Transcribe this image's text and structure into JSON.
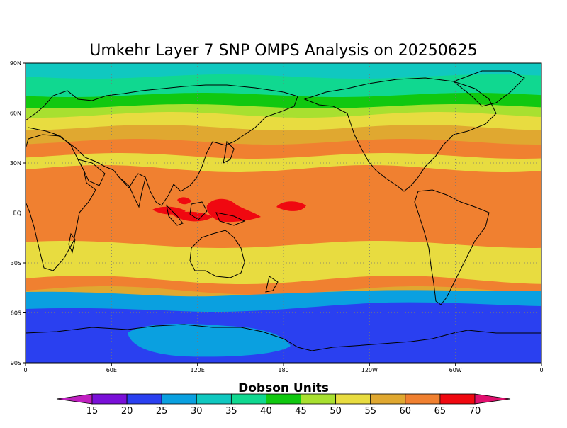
{
  "title": "Umkehr Layer 7 SNP OMPS Analysis on 20250625",
  "y_ticks": [
    "90N",
    "60N",
    "30N",
    "EQ",
    "30S",
    "60S",
    "90S"
  ],
  "x_ticks": [
    "0",
    "60E",
    "120E",
    "180",
    "120W",
    "60W",
    "0"
  ],
  "colorbar": {
    "label": "Dobson Units",
    "levels": [
      "15",
      "20",
      "25",
      "30",
      "35",
      "40",
      "45",
      "50",
      "55",
      "60",
      "65",
      "70"
    ],
    "colors": [
      "#c020c0",
      "#7a10d8",
      "#2a40f0",
      "#0aa0e0",
      "#10c8c0",
      "#10d890",
      "#10c810",
      "#a8e030",
      "#e8dc40",
      "#e0a830",
      "#f08030",
      "#f00810",
      "#e0106e"
    ]
  },
  "field_bands": [
    {
      "name": "60-65",
      "color": "#f08030"
    },
    {
      "name": "55-60",
      "color": "#e0a830"
    },
    {
      "name": "50-55",
      "color": "#e8dc40"
    },
    {
      "name": "45-50",
      "color": "#a8e030"
    },
    {
      "name": "40-45",
      "color": "#10c810"
    },
    {
      "name": "35-40",
      "color": "#10d890"
    },
    {
      "name": "30-35",
      "color": "#10c8c0"
    },
    {
      "name": "25-30",
      "color": "#0aa0e0"
    },
    {
      "name": "20-25",
      "color": "#2a40f0"
    },
    {
      "name": "65-70",
      "color": "#f00810"
    }
  ]
}
